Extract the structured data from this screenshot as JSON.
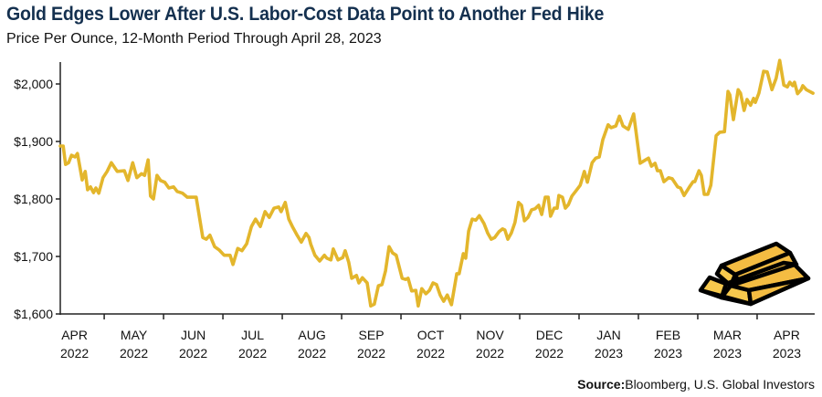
{
  "chart_data": {
    "type": "line",
    "title": "Gold Edges Lower After U.S. Labor-Cost Data Point to Another Fed Hike",
    "subtitle": "Price Per Ounce, 12-Month Period Through April 28, 2023",
    "xlabel": "",
    "ylabel": "",
    "x_units": "months since Apr 1, 2022",
    "xlim": [
      0.26,
      12.97
    ],
    "ylim": [
      1600,
      2060
    ],
    "y_ticks": [
      1600,
      1700,
      1800,
      1900,
      2000
    ],
    "y_tick_labels": [
      "$1,600",
      "$1,700",
      "$1,800",
      "$1,900",
      "$2,000"
    ],
    "x_tick_positions": [
      1,
      2,
      3,
      4,
      5,
      6,
      7,
      8,
      9,
      10,
      11,
      12
    ],
    "x_labels": [
      {
        "month": "APR",
        "year": "2022",
        "at": 0.5
      },
      {
        "month": "MAY",
        "year": "2022",
        "at": 1.5
      },
      {
        "month": "JUN",
        "year": "2022",
        "at": 2.5
      },
      {
        "month": "JUL",
        "year": "2022",
        "at": 3.5
      },
      {
        "month": "AUG",
        "year": "2022",
        "at": 4.5
      },
      {
        "month": "SEP",
        "year": "2022",
        "at": 5.5
      },
      {
        "month": "OCT",
        "year": "2022",
        "at": 6.5
      },
      {
        "month": "NOV",
        "year": "2022",
        "at": 7.5
      },
      {
        "month": "DEC",
        "year": "2022",
        "at": 8.5
      },
      {
        "month": "JAN",
        "year": "2023",
        "at": 9.5
      },
      {
        "month": "FEB",
        "year": "2023",
        "at": 10.5
      },
      {
        "month": "MAR",
        "year": "2023",
        "at": 11.5
      },
      {
        "month": "APR",
        "year": "2023",
        "at": 12.5
      }
    ],
    "grid": false,
    "legend": "none",
    "series": [
      {
        "name": "Gold price per ounce (USD)",
        "color": "#e3b62c",
        "points": [
          [
            0.26,
            1892
          ],
          [
            0.31,
            1892
          ],
          [
            0.35,
            1860
          ],
          [
            0.4,
            1863
          ],
          [
            0.45,
            1876
          ],
          [
            0.51,
            1873
          ],
          [
            0.55,
            1879
          ],
          [
            0.63,
            1833
          ],
          [
            0.68,
            1848
          ],
          [
            0.72,
            1816
          ],
          [
            0.77,
            1821
          ],
          [
            0.82,
            1811
          ],
          [
            0.86,
            1819
          ],
          [
            0.91,
            1810
          ],
          [
            0.98,
            1837
          ],
          [
            1.05,
            1848
          ],
          [
            1.12,
            1863
          ],
          [
            1.22,
            1848
          ],
          [
            1.34,
            1849
          ],
          [
            1.4,
            1832
          ],
          [
            1.48,
            1863
          ],
          [
            1.55,
            1837
          ],
          [
            1.63,
            1844
          ],
          [
            1.68,
            1841
          ],
          [
            1.74,
            1868
          ],
          [
            1.78,
            1805
          ],
          [
            1.83,
            1800
          ],
          [
            1.89,
            1841
          ],
          [
            1.95,
            1832
          ],
          [
            2.02,
            1829
          ],
          [
            2.09,
            1819
          ],
          [
            2.17,
            1821
          ],
          [
            2.23,
            1813
          ],
          [
            2.32,
            1810
          ],
          [
            2.4,
            1803
          ],
          [
            2.55,
            1803
          ],
          [
            2.66,
            1733
          ],
          [
            2.72,
            1730
          ],
          [
            2.78,
            1737
          ],
          [
            2.86,
            1717
          ],
          [
            2.94,
            1711
          ],
          [
            3.02,
            1702
          ],
          [
            3.12,
            1702
          ],
          [
            3.17,
            1686
          ],
          [
            3.25,
            1714
          ],
          [
            3.32,
            1710
          ],
          [
            3.4,
            1722
          ],
          [
            3.48,
            1752
          ],
          [
            3.55,
            1765
          ],
          [
            3.63,
            1752
          ],
          [
            3.71,
            1778
          ],
          [
            3.78,
            1768
          ],
          [
            3.86,
            1784
          ],
          [
            3.94,
            1786
          ],
          [
            3.98,
            1778
          ],
          [
            4.05,
            1794
          ],
          [
            4.11,
            1765
          ],
          [
            4.17,
            1752
          ],
          [
            4.25,
            1737
          ],
          [
            4.32,
            1725
          ],
          [
            4.4,
            1740
          ],
          [
            4.45,
            1733
          ],
          [
            4.48,
            1721
          ],
          [
            4.55,
            1702
          ],
          [
            4.63,
            1692
          ],
          [
            4.71,
            1702
          ],
          [
            4.75,
            1697
          ],
          [
            4.82,
            1694
          ],
          [
            4.86,
            1713
          ],
          [
            4.94,
            1694
          ],
          [
            5.02,
            1698
          ],
          [
            5.06,
            1710
          ],
          [
            5.12,
            1690
          ],
          [
            5.17,
            1662
          ],
          [
            5.25,
            1667
          ],
          [
            5.29,
            1654
          ],
          [
            5.35,
            1663
          ],
          [
            5.43,
            1654
          ],
          [
            5.49,
            1614
          ],
          [
            5.55,
            1617
          ],
          [
            5.62,
            1649
          ],
          [
            5.68,
            1651
          ],
          [
            5.74,
            1675
          ],
          [
            5.8,
            1717
          ],
          [
            5.86,
            1706
          ],
          [
            5.92,
            1702
          ],
          [
            6.02,
            1662
          ],
          [
            6.08,
            1660
          ],
          [
            6.12,
            1662
          ],
          [
            6.18,
            1640
          ],
          [
            6.25,
            1641
          ],
          [
            6.29,
            1614
          ],
          [
            6.35,
            1644
          ],
          [
            6.42,
            1635
          ],
          [
            6.48,
            1641
          ],
          [
            6.54,
            1654
          ],
          [
            6.6,
            1651
          ],
          [
            6.66,
            1633
          ],
          [
            6.72,
            1622
          ],
          [
            6.78,
            1633
          ],
          [
            6.85,
            1616
          ],
          [
            6.94,
            1670
          ],
          [
            6.98,
            1670
          ],
          [
            7.05,
            1705
          ],
          [
            7.09,
            1697
          ],
          [
            7.14,
            1744
          ],
          [
            7.2,
            1765
          ],
          [
            7.26,
            1763
          ],
          [
            7.32,
            1771
          ],
          [
            7.4,
            1757
          ],
          [
            7.46,
            1741
          ],
          [
            7.52,
            1730
          ],
          [
            7.58,
            1733
          ],
          [
            7.65,
            1743
          ],
          [
            7.71,
            1748
          ],
          [
            7.75,
            1746
          ],
          [
            7.8,
            1730
          ],
          [
            7.86,
            1741
          ],
          [
            7.92,
            1759
          ],
          [
            7.98,
            1794
          ],
          [
            8.03,
            1789
          ],
          [
            8.08,
            1762
          ],
          [
            8.14,
            1768
          ],
          [
            8.2,
            1781
          ],
          [
            8.26,
            1783
          ],
          [
            8.32,
            1789
          ],
          [
            8.37,
            1773
          ],
          [
            8.43,
            1803
          ],
          [
            8.48,
            1803
          ],
          [
            8.52,
            1770
          ],
          [
            8.58,
            1784
          ],
          [
            8.63,
            1784
          ],
          [
            8.66,
            1806
          ],
          [
            8.72,
            1803
          ],
          [
            8.77,
            1784
          ],
          [
            8.82,
            1790
          ],
          [
            8.88,
            1805
          ],
          [
            8.94,
            1813
          ],
          [
            9.02,
            1824
          ],
          [
            9.09,
            1848
          ],
          [
            9.14,
            1829
          ],
          [
            9.22,
            1863
          ],
          [
            9.28,
            1871
          ],
          [
            9.34,
            1873
          ],
          [
            9.4,
            1903
          ],
          [
            9.49,
            1929
          ],
          [
            9.54,
            1924
          ],
          [
            9.62,
            1927
          ],
          [
            9.68,
            1944
          ],
          [
            9.74,
            1927
          ],
          [
            9.83,
            1921
          ],
          [
            9.92,
            1948
          ],
          [
            10.03,
            1862
          ],
          [
            10.12,
            1868
          ],
          [
            10.17,
            1871
          ],
          [
            10.22,
            1857
          ],
          [
            10.28,
            1862
          ],
          [
            10.32,
            1849
          ],
          [
            10.37,
            1849
          ],
          [
            10.43,
            1830
          ],
          [
            10.51,
            1837
          ],
          [
            10.57,
            1835
          ],
          [
            10.66,
            1821
          ],
          [
            10.71,
            1819
          ],
          [
            10.77,
            1806
          ],
          [
            10.86,
            1821
          ],
          [
            10.92,
            1830
          ],
          [
            10.95,
            1830
          ],
          [
            11.02,
            1849
          ],
          [
            11.06,
            1841
          ],
          [
            11.11,
            1808
          ],
          [
            11.17,
            1808
          ],
          [
            11.22,
            1824
          ],
          [
            11.31,
            1910
          ],
          [
            11.37,
            1916
          ],
          [
            11.45,
            1917
          ],
          [
            11.51,
            1987
          ],
          [
            11.54,
            1981
          ],
          [
            11.6,
            1938
          ],
          [
            11.68,
            1990
          ],
          [
            11.72,
            1984
          ],
          [
            11.78,
            1954
          ],
          [
            11.83,
            1973
          ],
          [
            11.89,
            1963
          ],
          [
            11.94,
            1975
          ],
          [
            11.97,
            1968
          ],
          [
            12.03,
            1984
          ],
          [
            12.11,
            2022
          ],
          [
            12.17,
            2021
          ],
          [
            12.25,
            1990
          ],
          [
            12.32,
            2010
          ],
          [
            12.38,
            2041
          ],
          [
            12.45,
            1998
          ],
          [
            12.51,
            1995
          ],
          [
            12.55,
            2003
          ],
          [
            12.6,
            1997
          ],
          [
            12.63,
            2003
          ],
          [
            12.68,
            1983
          ],
          [
            12.74,
            1990
          ],
          [
            12.77,
            1997
          ],
          [
            12.83,
            1990
          ],
          [
            12.94,
            1984
          ]
        ]
      }
    ]
  },
  "source": {
    "label": "Source:",
    "text": "Bloomberg, U.S. Global Investors"
  },
  "decoration": {
    "icon": "gold-bars-icon",
    "bar_color": "#f4bc42"
  }
}
